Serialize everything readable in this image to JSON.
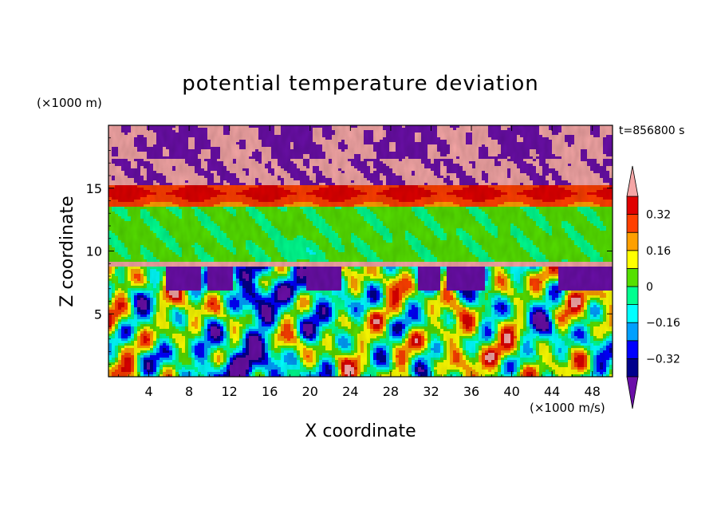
{
  "chart_data": {
    "type": "heatmap",
    "title": "potential temperature deviation",
    "xlabel": "X coordinate",
    "ylabel": "Z coordinate",
    "x_unit": "(×1000 m/s)",
    "y_unit": "(×1000 m)",
    "time_label": "t=856800 s",
    "xlim": [
      0,
      50
    ],
    "ylim": [
      0,
      20
    ],
    "x_ticks": [
      4,
      8,
      12,
      16,
      20,
      24,
      28,
      32,
      36,
      40,
      44,
      48
    ],
    "y_ticks": [
      5,
      10,
      15
    ],
    "colorbar": {
      "levels": [
        -0.4,
        -0.32,
        -0.24,
        -0.16,
        -0.08,
        0,
        0.08,
        0.16,
        0.24,
        0.32,
        0.4
      ],
      "labels": [
        "0.32",
        "0.16",
        "0",
        "−0.16",
        "−0.32"
      ],
      "label_values": [
        0.32,
        0.16,
        0,
        -0.16,
        -0.32
      ],
      "colors": [
        "#6a0fa8",
        "#00008c",
        "#0000ff",
        "#00a0ff",
        "#00ffff",
        "#00ff90",
        "#55e000",
        "#ffff00",
        "#ffa000",
        "#ff4000",
        "#e00000",
        "#f5a6a6"
      ],
      "extend": "both"
    }
  }
}
